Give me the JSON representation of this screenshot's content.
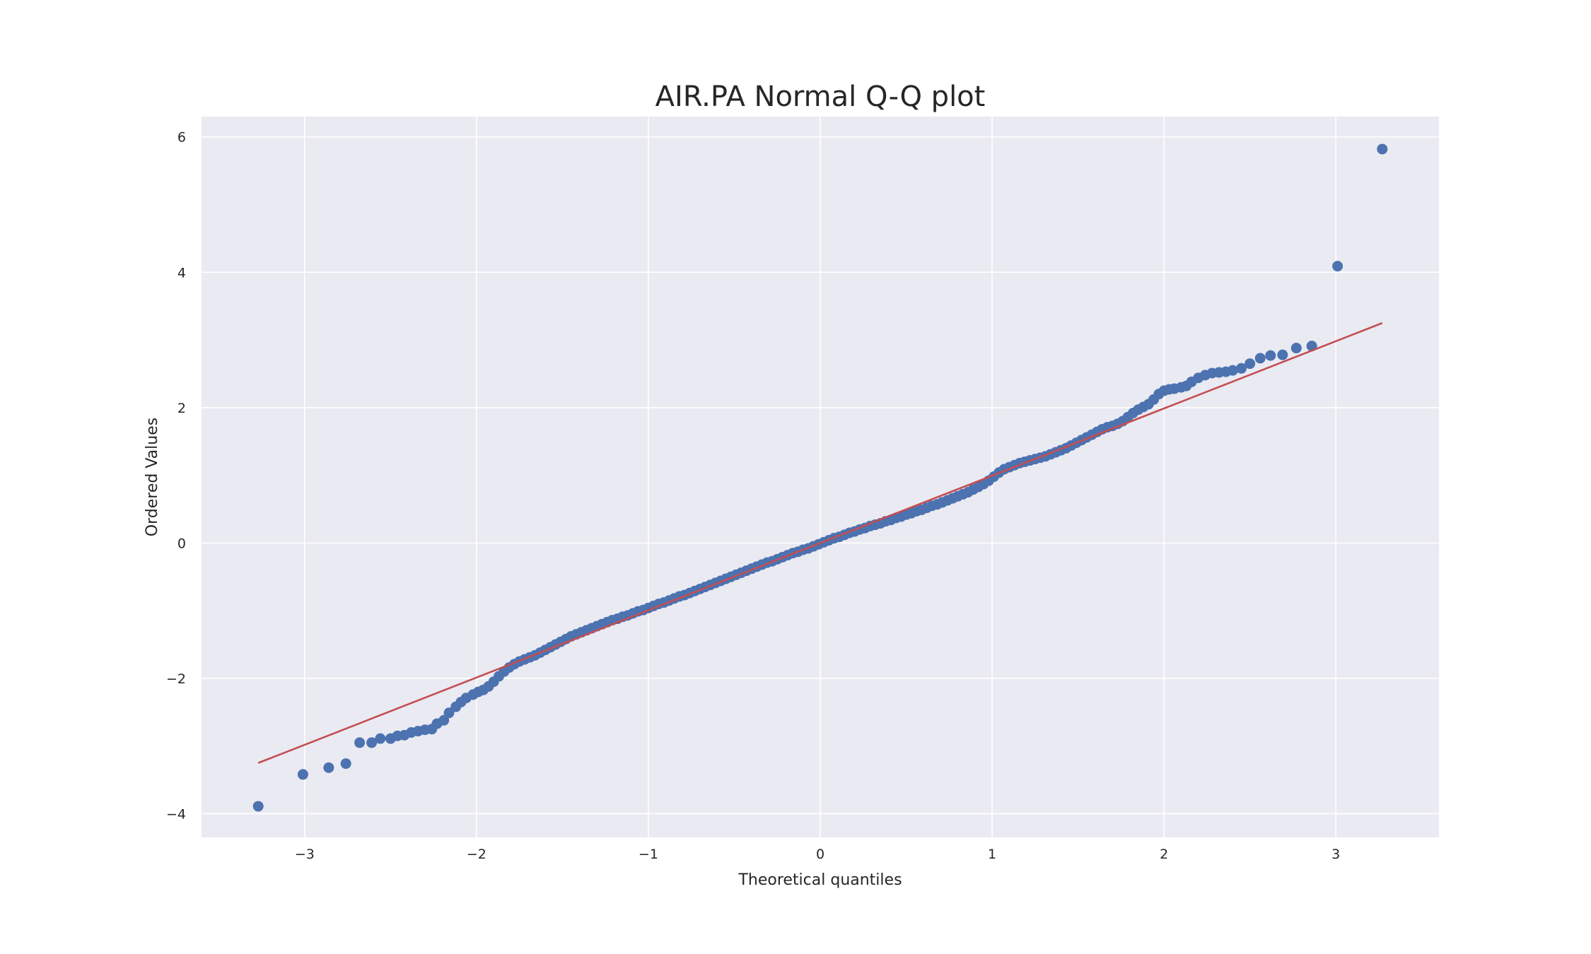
{
  "chart_data": {
    "type": "scatter",
    "title": "AIR.PA Normal Q-Q plot",
    "xlabel": "Theoretical quantiles",
    "ylabel": "Ordered Values",
    "xlim": [
      -3.6,
      3.6
    ],
    "ylim": [
      -4.35,
      6.3
    ],
    "x_ticks": [
      -3,
      -2,
      -1,
      0,
      1,
      2,
      3
    ],
    "x_tick_labels": [
      "−3",
      "−2",
      "−1",
      "0",
      "1",
      "2",
      "3"
    ],
    "y_ticks": [
      -4,
      -2,
      0,
      2,
      4,
      6
    ],
    "y_tick_labels": [
      "−4",
      "−2",
      "0",
      "2",
      "4",
      "6"
    ],
    "grid": true,
    "colors": {
      "background": "#eaeaf2",
      "grid": "#ffffff",
      "points": "#4c72b0",
      "fit_line": "#c44e52"
    },
    "series": [
      {
        "type": "scatter",
        "points": [
          [
            -3.27,
            -3.89
          ],
          [
            -3.01,
            -3.42
          ],
          [
            -2.86,
            -3.32
          ],
          [
            -2.76,
            -3.26
          ],
          [
            -2.68,
            -2.95
          ],
          [
            -2.61,
            -2.95
          ],
          [
            -2.56,
            -2.89
          ],
          [
            -2.5,
            -2.89
          ],
          [
            -2.46,
            -2.85
          ],
          [
            -2.42,
            -2.84
          ],
          [
            -2.38,
            -2.8
          ],
          [
            -2.34,
            -2.78
          ],
          [
            -2.3,
            -2.76
          ],
          [
            -2.26,
            -2.75
          ],
          [
            -2.23,
            -2.67
          ],
          [
            -2.19,
            -2.62
          ],
          [
            -2.16,
            -2.51
          ],
          [
            -2.12,
            -2.42
          ],
          [
            -2.09,
            -2.35
          ],
          [
            -2.06,
            -2.29
          ],
          [
            -2.02,
            -2.24
          ],
          [
            -1.99,
            -2.2
          ],
          [
            -1.96,
            -2.17
          ],
          [
            -1.93,
            -2.12
          ],
          [
            -1.9,
            -2.05
          ],
          [
            -1.87,
            -1.97
          ],
          [
            -1.84,
            -1.9
          ],
          [
            -1.81,
            -1.84
          ],
          [
            -1.78,
            -1.79
          ],
          [
            -1.75,
            -1.75
          ],
          [
            -1.72,
            -1.72
          ],
          [
            -1.69,
            -1.69
          ],
          [
            -1.66,
            -1.66
          ],
          [
            -1.63,
            -1.62
          ],
          [
            -1.6,
            -1.58
          ],
          [
            -1.57,
            -1.54
          ],
          [
            -1.54,
            -1.5
          ],
          [
            -1.51,
            -1.46
          ],
          [
            -1.48,
            -1.42
          ],
          [
            -1.45,
            -1.38
          ],
          [
            -1.42,
            -1.35
          ],
          [
            -1.39,
            -1.32
          ],
          [
            -1.36,
            -1.29
          ],
          [
            -1.33,
            -1.26
          ],
          [
            -1.3,
            -1.23
          ],
          [
            -1.27,
            -1.2
          ],
          [
            -1.24,
            -1.17
          ],
          [
            -1.21,
            -1.14
          ],
          [
            -1.18,
            -1.12
          ],
          [
            -1.15,
            -1.09
          ],
          [
            -1.12,
            -1.07
          ],
          [
            -1.09,
            -1.04
          ],
          [
            -1.06,
            -1.01
          ],
          [
            -1.03,
            -0.99
          ],
          [
            -1.0,
            -0.96
          ],
          [
            -0.97,
            -0.93
          ],
          [
            -0.94,
            -0.9
          ],
          [
            -0.91,
            -0.88
          ],
          [
            -0.88,
            -0.85
          ],
          [
            -0.85,
            -0.82
          ],
          [
            -0.82,
            -0.79
          ],
          [
            -0.79,
            -0.77
          ],
          [
            -0.76,
            -0.74
          ],
          [
            -0.73,
            -0.71
          ],
          [
            -0.7,
            -0.68
          ],
          [
            -0.67,
            -0.65
          ],
          [
            -0.64,
            -0.62
          ],
          [
            -0.61,
            -0.59
          ],
          [
            -0.58,
            -0.56
          ],
          [
            -0.55,
            -0.53
          ],
          [
            -0.52,
            -0.5
          ],
          [
            -0.49,
            -0.47
          ],
          [
            -0.46,
            -0.44
          ],
          [
            -0.43,
            -0.41
          ],
          [
            -0.4,
            -0.38
          ],
          [
            -0.37,
            -0.35
          ],
          [
            -0.34,
            -0.32
          ],
          [
            -0.31,
            -0.29
          ],
          [
            -0.28,
            -0.27
          ],
          [
            -0.25,
            -0.24
          ],
          [
            -0.22,
            -0.21
          ],
          [
            -0.19,
            -0.18
          ],
          [
            -0.16,
            -0.15
          ],
          [
            -0.13,
            -0.13
          ],
          [
            -0.1,
            -0.1
          ],
          [
            -0.07,
            -0.08
          ],
          [
            -0.04,
            -0.05
          ],
          [
            -0.01,
            -0.02
          ],
          [
            0.02,
            0.01
          ],
          [
            0.05,
            0.04
          ],
          [
            0.08,
            0.07
          ],
          [
            0.11,
            0.09
          ],
          [
            0.14,
            0.12
          ],
          [
            0.17,
            0.15
          ],
          [
            0.2,
            0.17
          ],
          [
            0.23,
            0.2
          ],
          [
            0.26,
            0.22
          ],
          [
            0.29,
            0.25
          ],
          [
            0.32,
            0.27
          ],
          [
            0.35,
            0.29
          ],
          [
            0.38,
            0.32
          ],
          [
            0.41,
            0.34
          ],
          [
            0.44,
            0.37
          ],
          [
            0.47,
            0.39
          ],
          [
            0.5,
            0.42
          ],
          [
            0.53,
            0.44
          ],
          [
            0.56,
            0.47
          ],
          [
            0.59,
            0.49
          ],
          [
            0.62,
            0.52
          ],
          [
            0.65,
            0.55
          ],
          [
            0.68,
            0.57
          ],
          [
            0.71,
            0.6
          ],
          [
            0.74,
            0.63
          ],
          [
            0.77,
            0.66
          ],
          [
            0.8,
            0.69
          ],
          [
            0.83,
            0.72
          ],
          [
            0.86,
            0.75
          ],
          [
            0.89,
            0.79
          ],
          [
            0.92,
            0.83
          ],
          [
            0.95,
            0.87
          ],
          [
            0.98,
            0.92
          ],
          [
            1.01,
            0.98
          ],
          [
            1.04,
            1.04
          ],
          [
            1.07,
            1.09
          ],
          [
            1.1,
            1.12
          ],
          [
            1.13,
            1.15
          ],
          [
            1.16,
            1.18
          ],
          [
            1.19,
            1.2
          ],
          [
            1.22,
            1.22
          ],
          [
            1.25,
            1.24
          ],
          [
            1.28,
            1.26
          ],
          [
            1.31,
            1.28
          ],
          [
            1.34,
            1.31
          ],
          [
            1.37,
            1.34
          ],
          [
            1.4,
            1.37
          ],
          [
            1.43,
            1.4
          ],
          [
            1.46,
            1.44
          ],
          [
            1.49,
            1.48
          ],
          [
            1.52,
            1.52
          ],
          [
            1.55,
            1.56
          ],
          [
            1.58,
            1.6
          ],
          [
            1.61,
            1.64
          ],
          [
            1.64,
            1.68
          ],
          [
            1.67,
            1.71
          ],
          [
            1.7,
            1.73
          ],
          [
            1.73,
            1.76
          ],
          [
            1.76,
            1.8
          ],
          [
            1.79,
            1.86
          ],
          [
            1.82,
            1.92
          ],
          [
            1.85,
            1.97
          ],
          [
            1.88,
            2.01
          ],
          [
            1.91,
            2.05
          ],
          [
            1.94,
            2.12
          ],
          [
            1.97,
            2.2
          ],
          [
            2.0,
            2.25
          ],
          [
            2.03,
            2.27
          ],
          [
            2.06,
            2.28
          ],
          [
            2.1,
            2.3
          ],
          [
            2.13,
            2.32
          ],
          [
            2.16,
            2.38
          ],
          [
            2.2,
            2.44
          ],
          [
            2.24,
            2.48
          ],
          [
            2.28,
            2.51
          ],
          [
            2.32,
            2.52
          ],
          [
            2.36,
            2.53
          ],
          [
            2.4,
            2.55
          ],
          [
            2.45,
            2.58
          ],
          [
            2.5,
            2.65
          ],
          [
            2.56,
            2.73
          ],
          [
            2.62,
            2.77
          ],
          [
            2.69,
            2.78
          ],
          [
            2.77,
            2.88
          ],
          [
            2.86,
            2.91
          ],
          [
            3.01,
            4.09
          ],
          [
            3.27,
            5.82
          ]
        ]
      },
      {
        "type": "line",
        "points": [
          [
            -3.27,
            -3.25
          ],
          [
            3.27,
            3.25
          ]
        ]
      }
    ]
  }
}
